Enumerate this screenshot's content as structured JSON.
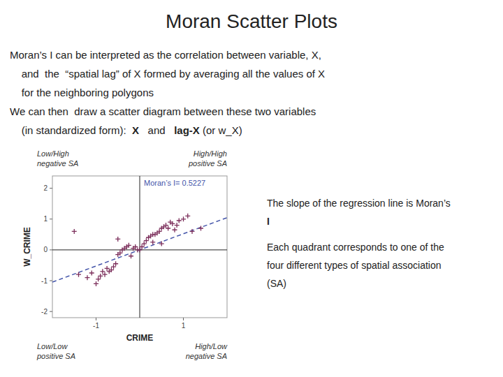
{
  "chart_data": {
    "type": "scatter",
    "title": "Moran Scatter Plots",
    "body_lines": [
      "Moran’s I can be interpreted as the correlation between variable, X,",
      "    and  the  “spatial lag” of X formed by averaging all the values of X",
      "    for the neighboring polygons",
      "We can then  draw a scatter diagram between these two variables"
    ],
    "line5_parts": [
      "    (in standardized form):  ",
      "X",
      "   and   ",
      "lag-X",
      " (or w_X)"
    ],
    "xlabel": "CRIME",
    "ylabel": "W_CRIME",
    "xlim": [
      -2.0,
      2.0
    ],
    "ylim": [
      -2.2,
      2.4
    ],
    "xticks": [
      -1,
      1
    ],
    "yticks": [
      -2,
      -1,
      0,
      1,
      2
    ],
    "grid": false,
    "reference_lines": {
      "x": 0,
      "y": 0
    },
    "series": [
      {
        "type": "scatter",
        "color": "#7B2D5A",
        "marker": "plus",
        "x": [
          -1.4,
          -1.2,
          -1.1,
          -1.0,
          -0.95,
          -0.9,
          -0.85,
          -0.8,
          -0.75,
          -0.7,
          -0.65,
          -0.6,
          -0.55,
          -0.5,
          -0.45,
          -0.4,
          -0.35,
          -0.3,
          -0.25,
          -0.2,
          -0.15,
          -0.1,
          -0.05,
          0.0,
          0.05,
          0.1,
          0.15,
          0.2,
          0.25,
          0.3,
          0.35,
          0.4,
          0.45,
          0.5,
          0.55,
          0.6,
          0.65,
          0.7,
          0.75,
          0.8,
          0.85,
          0.9,
          1.0,
          1.1,
          1.2,
          1.4,
          -0.5,
          0.3,
          0.5,
          -1.5
        ],
        "values": [
          -0.8,
          -0.9,
          -0.75,
          -1.1,
          -0.95,
          -0.85,
          -0.7,
          -0.8,
          -0.6,
          -0.7,
          -0.65,
          -0.55,
          -0.45,
          -0.15,
          -0.1,
          0.0,
          0.05,
          0.1,
          0.15,
          -0.2,
          0.05,
          0.1,
          0.0,
          0.0,
          0.1,
          0.2,
          0.3,
          0.4,
          0.45,
          0.5,
          0.5,
          0.55,
          0.6,
          0.7,
          0.75,
          0.8,
          0.7,
          0.9,
          0.85,
          0.65,
          0.8,
          0.95,
          1.0,
          1.1,
          0.6,
          0.7,
          0.35,
          0.25,
          0.2,
          0.6
        ]
      },
      {
        "type": "line",
        "color": "#4455AA",
        "line_style": "dashed",
        "x": [
          -2.0,
          2.0
        ],
        "values": [
          -1.0454,
          1.0454
        ]
      }
    ],
    "annotation": "Moran’s I= 0.5227",
    "quadrant_labels": [
      [
        "Low/High",
        "negative SA"
      ],
      [
        "High/High",
        "positive SA"
      ],
      [
        "Low/Low",
        "positive SA"
      ],
      [
        "High/Low",
        "negative SA"
      ]
    ],
    "annotation_lines": [
      "The slope of the regression line is Moran’s",
      "I",
      "Each quadrant corresponds to one of the",
      "four different types of spatial association",
      "(SA)"
    ]
  }
}
